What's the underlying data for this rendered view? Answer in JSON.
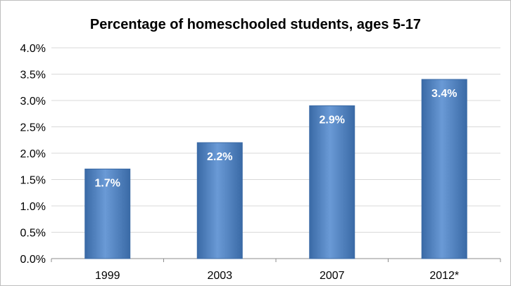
{
  "chart_data": {
    "type": "bar",
    "title": "Percentage of homeschooled students, ages 5-17",
    "xlabel": "",
    "ylabel": "",
    "categories": [
      "1999",
      "2003",
      "2007",
      "2012*"
    ],
    "values": [
      1.7,
      2.2,
      2.9,
      3.4
    ],
    "data_labels": [
      "1.7%",
      "2.2%",
      "2.9%",
      "3.4%"
    ],
    "ylim": [
      0,
      4.0
    ],
    "yticks": [
      0,
      0.5,
      1.0,
      1.5,
      2.0,
      2.5,
      3.0,
      3.5,
      4.0
    ],
    "ytick_labels": [
      "0.0%",
      "0.5%",
      "1.0%",
      "1.5%",
      "2.0%",
      "2.5%",
      "3.0%",
      "3.5%",
      "4.0%"
    ],
    "grid": true,
    "legend": "none",
    "colors": {
      "bar": "#4f81bd",
      "bar_light": "#6a9ad6",
      "bar_dark": "#3a6aa6",
      "grid": "#d9d9d9"
    }
  }
}
